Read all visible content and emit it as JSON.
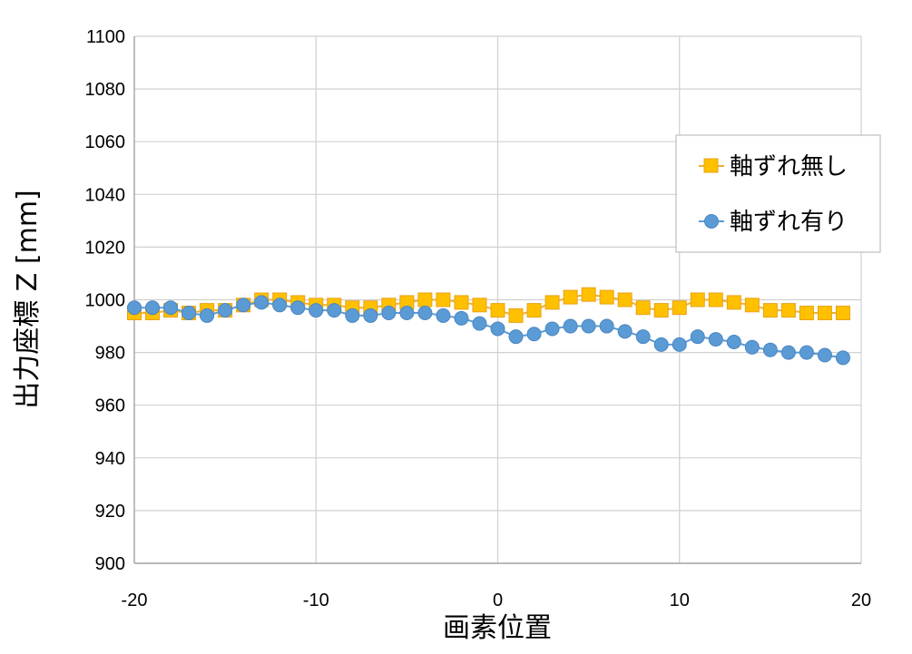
{
  "chart_data": {
    "type": "line",
    "title": "",
    "xlabel": "画素位置",
    "ylabel": "出力座標 Z [mm]",
    "xlim": [
      -20,
      20
    ],
    "ylim": [
      900,
      1100
    ],
    "xticks": [
      -20,
      -10,
      0,
      10,
      20
    ],
    "yticks": [
      900,
      920,
      940,
      960,
      980,
      1000,
      1020,
      1040,
      1060,
      1080,
      1100
    ],
    "xtick_labels": [
      "-20",
      "-10",
      "0",
      "10",
      "20"
    ],
    "ytick_labels": [
      "900",
      "920",
      "940",
      "960",
      "980",
      "1000",
      "1020",
      "1040",
      "1060",
      "1080",
      "1100"
    ],
    "grid": true,
    "legend_position": "right",
    "x": [
      -20,
      -19,
      -18,
      -17,
      -16,
      -15,
      -14,
      -13,
      -12,
      -11,
      -10,
      -9,
      -8,
      -7,
      -6,
      -5,
      -4,
      -3,
      -2,
      -1,
      0,
      1,
      2,
      3,
      4,
      5,
      6,
      7,
      8,
      9,
      10,
      11,
      12,
      13,
      14,
      15,
      16,
      17,
      18,
      19
    ],
    "series": [
      {
        "name": "軸ずれ無し",
        "marker": "square",
        "color": "#FFC000",
        "marker_edge": "#E8A317",
        "line_color": "#F0B030",
        "values": [
          995,
          995,
          996,
          995,
          996,
          996,
          998,
          1000,
          1000,
          999,
          998,
          998,
          997,
          997,
          998,
          999,
          1000,
          1000,
          999,
          998,
          996,
          994,
          996,
          999,
          1001,
          1002,
          1001,
          1000,
          997,
          996,
          997,
          1000,
          1000,
          999,
          998,
          996,
          996,
          995,
          995,
          995
        ]
      },
      {
        "name": "軸ずれ有り",
        "marker": "circle",
        "color": "#5B9BD5",
        "marker_edge": "#4A86C0",
        "line_color": "#5B9BD5",
        "values": [
          997,
          997,
          997,
          995,
          994,
          996,
          998,
          999,
          998,
          997,
          996,
          996,
          994,
          994,
          995,
          995,
          995,
          994,
          993,
          991,
          989,
          986,
          987,
          989,
          990,
          990,
          990,
          988,
          986,
          983,
          983,
          986,
          985,
          984,
          982,
          981,
          980,
          980,
          979,
          978
        ]
      }
    ]
  }
}
